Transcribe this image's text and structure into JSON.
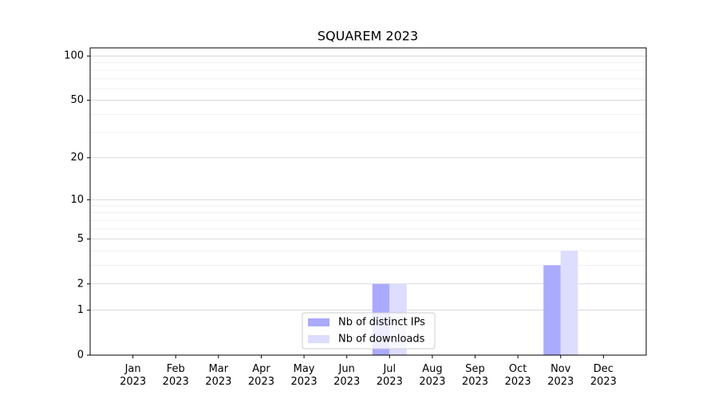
{
  "chart_data": {
    "type": "bar",
    "title": "SQUAREM 2023",
    "categories": [
      "Jan\n2023",
      "Feb\n2023",
      "Mar\n2023",
      "Apr\n2023",
      "May\n2023",
      "Jun\n2023",
      "Jul\n2023",
      "Aug\n2023",
      "Sep\n2023",
      "Oct\n2023",
      "Nov\n2023",
      "Dec\n2023"
    ],
    "series": [
      {
        "name": "Nb of distinct IPs",
        "color": "#aaaaff",
        "values": [
          0,
          0,
          0,
          0,
          0,
          0,
          2,
          0,
          0,
          0,
          3,
          0
        ]
      },
      {
        "name": "Nb of downloads",
        "color": "#ddddff",
        "values": [
          0,
          0,
          0,
          0,
          0,
          0,
          2,
          0,
          0,
          0,
          4,
          0
        ]
      }
    ],
    "yscale": "log1p",
    "ylim": [
      0,
      113.5
    ],
    "yticks": [
      0,
      1,
      2,
      5,
      10,
      20,
      50,
      100
    ],
    "yminorticks": [
      3,
      4,
      6,
      7,
      8,
      9,
      30,
      40,
      60,
      70,
      80,
      90
    ],
    "grid": true,
    "legend": "lower center"
  }
}
